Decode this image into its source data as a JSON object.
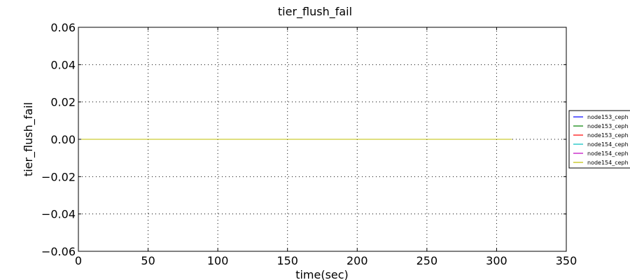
{
  "chart_data": {
    "type": "line",
    "title": "tier_flush_fail",
    "xlabel": "time(sec)",
    "ylabel": "tier_flush_fail",
    "xlim": [
      0,
      350
    ],
    "ylim": [
      -0.06,
      0.06
    ],
    "x_ticks": [
      0,
      50,
      100,
      150,
      200,
      250,
      300,
      350
    ],
    "y_ticks": [
      0.06,
      0.04,
      0.02,
      0.0,
      -0.02,
      -0.04,
      -0.06
    ],
    "x_tick_labels": [
      "0",
      "50",
      "100",
      "150",
      "200",
      "250",
      "300",
      "350"
    ],
    "y_tick_labels": [
      "0.06",
      "0.04",
      "0.02",
      "0.00",
      "−0.02",
      "−0.04",
      "−0.06"
    ],
    "grid": true,
    "legend_placement": "right",
    "x": [
      0,
      50,
      100,
      150,
      200,
      250,
      300,
      311
    ],
    "series": [
      {
        "name": "node153_ceph",
        "color": "#0000ff",
        "values": [
          0,
          0,
          0,
          0,
          0,
          0,
          0,
          0
        ]
      },
      {
        "name": "node153_ceph",
        "color": "#008000",
        "values": [
          0,
          0,
          0,
          0,
          0,
          0,
          0,
          0
        ]
      },
      {
        "name": "node153_ceph",
        "color": "#ff0000",
        "values": [
          0,
          0,
          0,
          0,
          0,
          0,
          0,
          0
        ]
      },
      {
        "name": "node154_ceph",
        "color": "#00bfbf",
        "values": [
          0,
          0,
          0,
          0,
          0,
          0,
          0,
          0
        ]
      },
      {
        "name": "node154_ceph",
        "color": "#bf00bf",
        "values": [
          0,
          0,
          0,
          0,
          0,
          0,
          0,
          0
        ]
      },
      {
        "name": "node154_ceph",
        "color": "#bfbf00",
        "values": [
          0,
          0,
          0,
          0,
          0,
          0,
          0,
          0
        ]
      }
    ]
  }
}
